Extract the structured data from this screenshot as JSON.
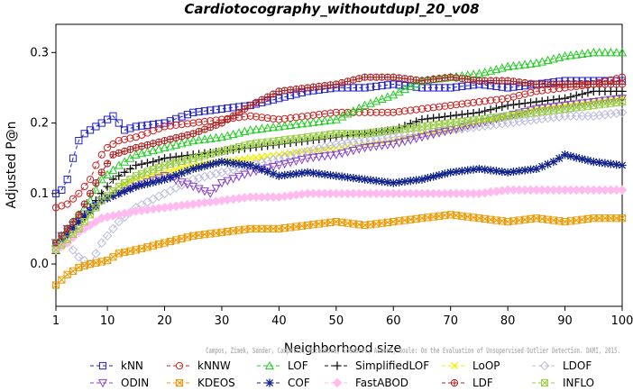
{
  "chart_data": {
    "type": "line",
    "title": "Cardiotocography_withoutdupl_20_v08",
    "xlabel": "Neighborhood size",
    "ylabel": "Adjusted P@n",
    "xlim": [
      1,
      100
    ],
    "ylim": [
      -0.06,
      0.34
    ],
    "x_ticks": [
      1,
      10,
      20,
      30,
      40,
      50,
      60,
      70,
      80,
      90,
      100
    ],
    "y_ticks": [
      0.0,
      0.1,
      0.2,
      0.3
    ],
    "y_tick_labels": [
      "0.0",
      "0.1",
      "0.2",
      "0.3"
    ],
    "grid": false,
    "legend_position": "bottom",
    "credit": "Campos, Zimek, Sander, Campello, Micenkova, Schubert, Assent, Houle: On the Evaluation of Unsupervised Outlier Detection. DAMI, 2015.",
    "series": [
      {
        "name": "kNN",
        "color": "#2222cc",
        "marker": "square",
        "points": [
          [
            1,
            0.1
          ],
          [
            2,
            0.105
          ],
          [
            3,
            0.12
          ],
          [
            4,
            0.15
          ],
          [
            5,
            0.175
          ],
          [
            6,
            0.185
          ],
          [
            7,
            0.19
          ],
          [
            8,
            0.195
          ],
          [
            9,
            0.2
          ],
          [
            10,
            0.205
          ],
          [
            11,
            0.21
          ],
          [
            13,
            0.19
          ],
          [
            15,
            0.195
          ],
          [
            20,
            0.2
          ],
          [
            25,
            0.215
          ],
          [
            30,
            0.22
          ],
          [
            35,
            0.225
          ],
          [
            40,
            0.235
          ],
          [
            45,
            0.245
          ],
          [
            50,
            0.25
          ],
          [
            55,
            0.25
          ],
          [
            60,
            0.255
          ],
          [
            65,
            0.25
          ],
          [
            70,
            0.25
          ],
          [
            75,
            0.255
          ],
          [
            80,
            0.25
          ],
          [
            85,
            0.255
          ],
          [
            90,
            0.26
          ],
          [
            95,
            0.26
          ],
          [
            100,
            0.26
          ]
        ]
      },
      {
        "name": "kNNW",
        "color": "#cc2222",
        "marker": "circle",
        "points": [
          [
            1,
            0.08
          ],
          [
            3,
            0.085
          ],
          [
            5,
            0.1
          ],
          [
            7,
            0.12
          ],
          [
            8,
            0.14
          ],
          [
            9,
            0.155
          ],
          [
            10,
            0.165
          ],
          [
            12,
            0.175
          ],
          [
            15,
            0.18
          ],
          [
            20,
            0.195
          ],
          [
            25,
            0.2
          ],
          [
            30,
            0.205
          ],
          [
            35,
            0.21
          ],
          [
            40,
            0.205
          ],
          [
            45,
            0.21
          ],
          [
            50,
            0.215
          ],
          [
            55,
            0.215
          ],
          [
            60,
            0.215
          ],
          [
            65,
            0.22
          ],
          [
            70,
            0.225
          ],
          [
            75,
            0.23
          ],
          [
            80,
            0.235
          ],
          [
            85,
            0.245
          ],
          [
            90,
            0.25
          ],
          [
            95,
            0.255
          ],
          [
            100,
            0.265
          ]
        ]
      },
      {
        "name": "LOF",
        "color": "#22cc22",
        "marker": "triangle-up",
        "points": [
          [
            1,
            0.03
          ],
          [
            3,
            0.05
          ],
          [
            5,
            0.07
          ],
          [
            7,
            0.09
          ],
          [
            9,
            0.12
          ],
          [
            12,
            0.14
          ],
          [
            15,
            0.155
          ],
          [
            20,
            0.165
          ],
          [
            25,
            0.175
          ],
          [
            30,
            0.18
          ],
          [
            35,
            0.19
          ],
          [
            40,
            0.195
          ],
          [
            45,
            0.2
          ],
          [
            50,
            0.205
          ],
          [
            55,
            0.225
          ],
          [
            60,
            0.24
          ],
          [
            65,
            0.26
          ],
          [
            70,
            0.265
          ],
          [
            75,
            0.27
          ],
          [
            80,
            0.28
          ],
          [
            85,
            0.285
          ],
          [
            90,
            0.295
          ],
          [
            95,
            0.3
          ],
          [
            100,
            0.3
          ]
        ]
      },
      {
        "name": "SimplifiedLOF",
        "color": "#111111",
        "marker": "plus",
        "points": [
          [
            1,
            0.015
          ],
          [
            2,
            0.03
          ],
          [
            3,
            0.045
          ],
          [
            5,
            0.06
          ],
          [
            7,
            0.08
          ],
          [
            9,
            0.1
          ],
          [
            11,
            0.12
          ],
          [
            13,
            0.13
          ],
          [
            15,
            0.14
          ],
          [
            18,
            0.145
          ],
          [
            20,
            0.15
          ],
          [
            25,
            0.155
          ],
          [
            30,
            0.16
          ],
          [
            35,
            0.165
          ],
          [
            40,
            0.17
          ],
          [
            45,
            0.175
          ],
          [
            50,
            0.18
          ],
          [
            55,
            0.185
          ],
          [
            60,
            0.19
          ],
          [
            65,
            0.205
          ],
          [
            70,
            0.21
          ],
          [
            75,
            0.215
          ],
          [
            80,
            0.225
          ],
          [
            85,
            0.23
          ],
          [
            90,
            0.235
          ],
          [
            95,
            0.245
          ],
          [
            100,
            0.245
          ]
        ]
      },
      {
        "name": "LoOP",
        "color": "#eeee00",
        "marker": "x",
        "points": [
          [
            1,
            0.02
          ],
          [
            3,
            0.03
          ],
          [
            5,
            0.05
          ],
          [
            7,
            0.07
          ],
          [
            9,
            0.09
          ],
          [
            12,
            0.11
          ],
          [
            15,
            0.12
          ],
          [
            20,
            0.13
          ],
          [
            25,
            0.14
          ],
          [
            30,
            0.145
          ],
          [
            35,
            0.15
          ],
          [
            40,
            0.155
          ],
          [
            45,
            0.16
          ],
          [
            50,
            0.165
          ],
          [
            55,
            0.17
          ],
          [
            60,
            0.175
          ],
          [
            65,
            0.185
          ],
          [
            70,
            0.19
          ],
          [
            75,
            0.2
          ],
          [
            80,
            0.21
          ],
          [
            85,
            0.22
          ],
          [
            90,
            0.225
          ],
          [
            95,
            0.23
          ],
          [
            100,
            0.235
          ]
        ]
      },
      {
        "name": "LDOF",
        "color": "#bbbbdd",
        "marker": "diamond",
        "points": [
          [
            1,
            0.02
          ],
          [
            3,
            0.03
          ],
          [
            5,
            0.01
          ],
          [
            7,
            0.0
          ],
          [
            9,
            0.03
          ],
          [
            12,
            0.06
          ],
          [
            15,
            0.08
          ],
          [
            20,
            0.1
          ],
          [
            25,
            0.12
          ],
          [
            30,
            0.13
          ],
          [
            35,
            0.14
          ],
          [
            40,
            0.15
          ],
          [
            45,
            0.16
          ],
          [
            50,
            0.17
          ],
          [
            55,
            0.175
          ],
          [
            60,
            0.18
          ],
          [
            65,
            0.185
          ],
          [
            70,
            0.19
          ],
          [
            75,
            0.195
          ],
          [
            80,
            0.2
          ],
          [
            85,
            0.205
          ],
          [
            90,
            0.21
          ],
          [
            95,
            0.21
          ],
          [
            100,
            0.215
          ]
        ]
      },
      {
        "name": "ODIN",
        "color": "#8844cc",
        "marker": "triangle-down",
        "points": [
          [
            1,
            0.03
          ],
          [
            3,
            0.05
          ],
          [
            5,
            0.06
          ],
          [
            7,
            0.075
          ],
          [
            9,
            0.09
          ],
          [
            12,
            0.1
          ],
          [
            15,
            0.11
          ],
          [
            20,
            0.125
          ],
          [
            25,
            0.11
          ],
          [
            28,
            0.1
          ],
          [
            30,
            0.115
          ],
          [
            35,
            0.13
          ],
          [
            40,
            0.14
          ],
          [
            45,
            0.15
          ],
          [
            50,
            0.155
          ],
          [
            55,
            0.165
          ],
          [
            60,
            0.17
          ],
          [
            65,
            0.18
          ],
          [
            70,
            0.19
          ],
          [
            75,
            0.2
          ],
          [
            80,
            0.21
          ],
          [
            85,
            0.22
          ],
          [
            90,
            0.225
          ],
          [
            95,
            0.23
          ],
          [
            100,
            0.235
          ]
        ]
      },
      {
        "name": "KDEOS",
        "color": "#ee9900",
        "marker": "square-x",
        "points": [
          [
            1,
            -0.03
          ],
          [
            3,
            -0.015
          ],
          [
            5,
            -0.005
          ],
          [
            7,
            0.0
          ],
          [
            10,
            0.005
          ],
          [
            12,
            0.015
          ],
          [
            15,
            0.02
          ],
          [
            20,
            0.03
          ],
          [
            25,
            0.04
          ],
          [
            30,
            0.045
          ],
          [
            35,
            0.05
          ],
          [
            40,
            0.05
          ],
          [
            45,
            0.055
          ],
          [
            50,
            0.06
          ],
          [
            55,
            0.055
          ],
          [
            60,
            0.06
          ],
          [
            65,
            0.065
          ],
          [
            70,
            0.07
          ],
          [
            75,
            0.065
          ],
          [
            80,
            0.06
          ],
          [
            85,
            0.065
          ],
          [
            90,
            0.06
          ],
          [
            95,
            0.065
          ],
          [
            100,
            0.065
          ]
        ]
      },
      {
        "name": "COF",
        "color": "#112288",
        "marker": "asterisk",
        "points": [
          [
            1,
            0.02
          ],
          [
            3,
            0.04
          ],
          [
            5,
            0.06
          ],
          [
            7,
            0.075
          ],
          [
            9,
            0.09
          ],
          [
            12,
            0.1
          ],
          [
            15,
            0.11
          ],
          [
            20,
            0.12
          ],
          [
            25,
            0.135
          ],
          [
            30,
            0.145
          ],
          [
            35,
            0.14
          ],
          [
            40,
            0.125
          ],
          [
            45,
            0.13
          ],
          [
            50,
            0.125
          ],
          [
            55,
            0.12
          ],
          [
            60,
            0.115
          ],
          [
            65,
            0.12
          ],
          [
            70,
            0.13
          ],
          [
            75,
            0.135
          ],
          [
            80,
            0.13
          ],
          [
            85,
            0.135
          ],
          [
            88,
            0.145
          ],
          [
            90,
            0.155
          ],
          [
            95,
            0.145
          ],
          [
            100,
            0.14
          ]
        ]
      },
      {
        "name": "FastABOD",
        "color": "#ffbbee",
        "marker": "diamond-filled",
        "points": [
          [
            1,
            0.02
          ],
          [
            3,
            0.03
          ],
          [
            5,
            0.045
          ],
          [
            7,
            0.055
          ],
          [
            9,
            0.065
          ],
          [
            12,
            0.07
          ],
          [
            15,
            0.075
          ],
          [
            20,
            0.08
          ],
          [
            25,
            0.085
          ],
          [
            30,
            0.09
          ],
          [
            35,
            0.095
          ],
          [
            40,
            0.095
          ],
          [
            45,
            0.1
          ],
          [
            50,
            0.1
          ],
          [
            55,
            0.1
          ],
          [
            60,
            0.1
          ],
          [
            65,
            0.1
          ],
          [
            70,
            0.1
          ],
          [
            75,
            0.1
          ],
          [
            80,
            0.105
          ],
          [
            85,
            0.105
          ],
          [
            90,
            0.105
          ],
          [
            95,
            0.105
          ],
          [
            100,
            0.105
          ]
        ]
      },
      {
        "name": "LDF",
        "color": "#aa2222",
        "marker": "circle-plus",
        "points": [
          [
            1,
            0.03
          ],
          [
            3,
            0.05
          ],
          [
            5,
            0.07
          ],
          [
            7,
            0.1
          ],
          [
            9,
            0.13
          ],
          [
            11,
            0.155
          ],
          [
            13,
            0.16
          ],
          [
            15,
            0.165
          ],
          [
            20,
            0.175
          ],
          [
            25,
            0.185
          ],
          [
            30,
            0.2
          ],
          [
            35,
            0.225
          ],
          [
            40,
            0.245
          ],
          [
            45,
            0.25
          ],
          [
            50,
            0.255
          ],
          [
            55,
            0.265
          ],
          [
            60,
            0.265
          ],
          [
            65,
            0.26
          ],
          [
            70,
            0.265
          ],
          [
            75,
            0.26
          ],
          [
            80,
            0.26
          ],
          [
            85,
            0.255
          ],
          [
            90,
            0.255
          ],
          [
            95,
            0.255
          ],
          [
            100,
            0.255
          ]
        ]
      },
      {
        "name": "INFLO",
        "color": "#99cc44",
        "marker": "square-x",
        "points": [
          [
            1,
            0.02
          ],
          [
            3,
            0.035
          ],
          [
            5,
            0.05
          ],
          [
            7,
            0.07
          ],
          [
            9,
            0.09
          ],
          [
            12,
            0.11
          ],
          [
            15,
            0.125
          ],
          [
            20,
            0.14
          ],
          [
            25,
            0.15
          ],
          [
            30,
            0.16
          ],
          [
            35,
            0.17
          ],
          [
            40,
            0.175
          ],
          [
            45,
            0.18
          ],
          [
            50,
            0.185
          ],
          [
            55,
            0.185
          ],
          [
            60,
            0.19
          ],
          [
            65,
            0.195
          ],
          [
            70,
            0.2
          ],
          [
            75,
            0.205
          ],
          [
            80,
            0.21
          ],
          [
            85,
            0.215
          ],
          [
            90,
            0.22
          ],
          [
            95,
            0.225
          ],
          [
            100,
            0.23
          ]
        ]
      }
    ]
  }
}
